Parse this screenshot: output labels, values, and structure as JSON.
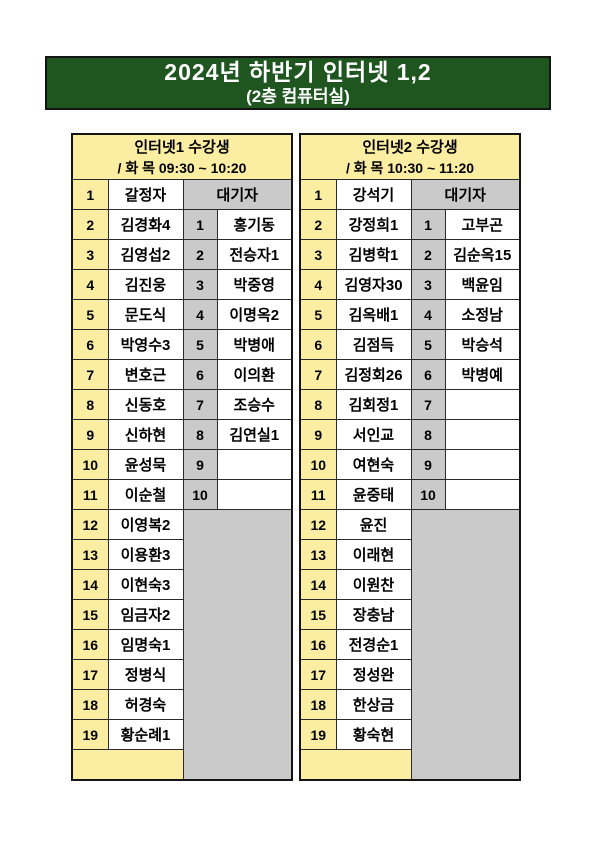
{
  "banner": {
    "title": "2024년 하반기 인터넷 1,2",
    "subtitle": "(2층 컴퓨터실)"
  },
  "colors": {
    "banner_bg": "#1f5620",
    "banner_text": "#ffffff",
    "cell_yellow": "#fbeea3",
    "cell_gray": "#cacaca",
    "grid_line": "#2b2b2b"
  },
  "tables": [
    {
      "title": "인터넷1 수강생",
      "schedule": "/ 화 목 09:30 ~ 10:20",
      "waiting_header": "대기자",
      "students": [
        "갈정자",
        "김경화4",
        "김영섭2",
        "김진웅",
        "문도식",
        "박영수3",
        "변호근",
        "신동호",
        "신하현",
        "윤성묵",
        "이순철",
        "이영복2",
        "이용환3",
        "이현숙3",
        "임금자2",
        "임명숙1",
        "정병식",
        "허경숙",
        "황순례1"
      ],
      "waiting": [
        "홍기동",
        "전승자1",
        "박중영",
        "이명옥2",
        "박병애",
        "이의환",
        "조승수",
        "김연실1",
        "",
        ""
      ]
    },
    {
      "title": "인터넷2 수강생",
      "schedule": "/ 화 목 10:30 ~ 11:20",
      "waiting_header": "대기자",
      "students": [
        "강석기",
        "강정희1",
        "김병학1",
        "김영자30",
        "김옥배1",
        "김점득",
        "김정회26",
        "김회정1",
        "서인교",
        "여현숙",
        "윤중태",
        "윤진",
        "이래현",
        "이원찬",
        "장충남",
        "전경순1",
        "정성완",
        "한상금",
        "황숙현"
      ],
      "waiting": [
        "고부곤",
        "김순옥15",
        "백윤임",
        "소정남",
        "박승석",
        "박병예",
        "",
        "",
        "",
        ""
      ]
    }
  ]
}
